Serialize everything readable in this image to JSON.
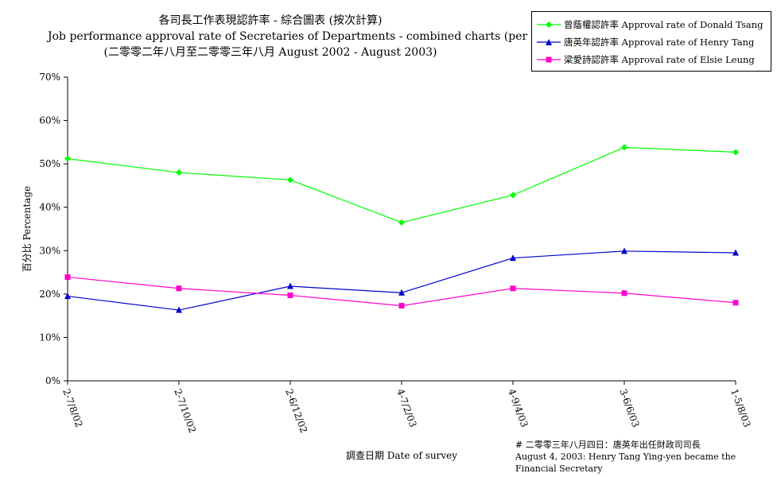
{
  "titles": {
    "line1": "各司長工作表現認許率 - 綜合圖表 (按次計算)",
    "line2": "Job performance approval rate of Secretaries of Departments - combined charts (per poll)",
    "line3": "(二零零二年八月至二零零三年八月 August 2002 - August 2003)"
  },
  "note": {
    "line1": "# 二零零三年八月四日：唐英年出任財政司司長",
    "line2": "August 4, 2003: Henry Tang Ying-yen became the Financial Secretary"
  },
  "chart_data": {
    "type": "line",
    "xlabel": "調查日期 Date of survey",
    "ylabel": "百分比 Percentage",
    "categories": [
      "2-7/8/02",
      "2-7/10/02",
      "2-6/12/02",
      "4-7/2/03",
      "4-9/4/03",
      "3-6/6/03",
      "1-5/8/03"
    ],
    "y_ticks": [
      "0%",
      "10%",
      "20%",
      "30%",
      "40%",
      "50%",
      "60%",
      "70%"
    ],
    "ylim": [
      0,
      70
    ],
    "grid": false,
    "legend_position": "top-right",
    "series": [
      {
        "name": "曾蔭權認許率 Approval rate of Donald Tsang",
        "color": "#00ff00",
        "marker": "diamond",
        "values": [
          51.2,
          48.0,
          46.3,
          36.5,
          42.8,
          53.8,
          52.7
        ]
      },
      {
        "name": "唐英年認許率 Approval rate of Henry Tang",
        "color": "#0000cc",
        "marker": "triangle",
        "values": [
          19.5,
          16.3,
          21.8,
          20.3,
          28.3,
          29.9,
          29.5
        ]
      },
      {
        "name": "梁愛詩認許率 Approval rate of Elsie Leung",
        "color": "#ff00cc",
        "marker": "square",
        "values": [
          23.9,
          21.3,
          19.7,
          17.3,
          21.3,
          20.2,
          18.0
        ]
      }
    ]
  }
}
